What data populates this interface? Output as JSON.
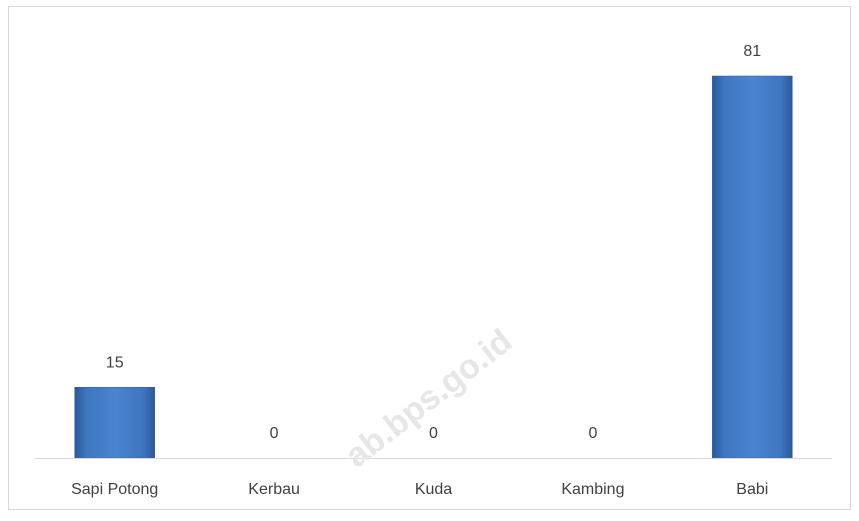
{
  "chart_data": {
    "type": "bar",
    "categories": [
      "Sapi Potong",
      "Kerbau",
      "Kuda",
      "Kambing",
      "Babi"
    ],
    "values": [
      15,
      0,
      0,
      0,
      81
    ],
    "color": "#3f76c0",
    "watermark": "ab.bps.go.id"
  }
}
